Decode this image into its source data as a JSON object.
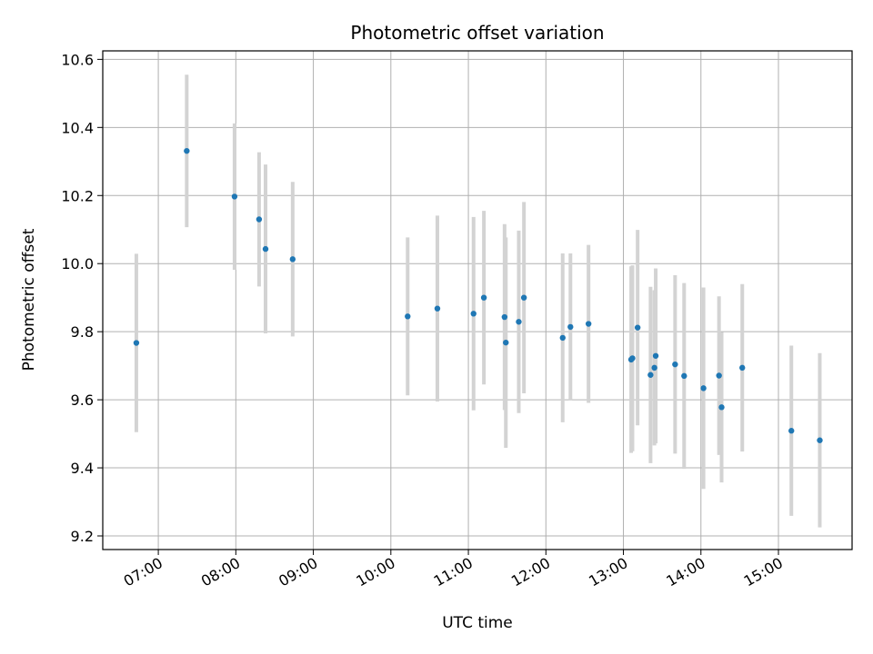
{
  "chart_data": {
    "type": "scatter",
    "title": "Photometric offset variation",
    "xlabel": "UTC time",
    "ylabel": "Photometric offset",
    "x_ticks": [
      "07:00",
      "08:00",
      "09:00",
      "10:00",
      "11:00",
      "12:00",
      "13:00",
      "14:00",
      "15:00"
    ],
    "y_ticks": [
      "9.2",
      "9.4",
      "9.6",
      "9.8",
      "10.0",
      "10.2",
      "10.4",
      "10.6"
    ],
    "xlim": [
      "06:17",
      "15:57"
    ],
    "ylim": [
      9.16,
      10.625
    ],
    "grid": true,
    "colors": {
      "points": "#1f77b4",
      "errorbars": "#d3d3d3",
      "grid": "#b0b0b0"
    },
    "points": [
      {
        "t": "06:43",
        "y": 9.767,
        "err": 0.262
      },
      {
        "t": "07:22",
        "y": 10.331,
        "err": 0.224
      },
      {
        "t": "07:59",
        "y": 10.197,
        "err": 0.215
      },
      {
        "t": "08:18",
        "y": 10.13,
        "err": 0.197
      },
      {
        "t": "08:23",
        "y": 10.043,
        "err": 0.248
      },
      {
        "t": "08:44",
        "y": 10.013,
        "err": 0.227
      },
      {
        "t": "10:13",
        "y": 9.845,
        "err": 0.232
      },
      {
        "t": "10:36",
        "y": 9.868,
        "err": 0.273
      },
      {
        "t": "11:04",
        "y": 9.853,
        "err": 0.284
      },
      {
        "t": "11:12",
        "y": 9.9,
        "err": 0.255
      },
      {
        "t": "11:28",
        "y": 9.843,
        "err": 0.273
      },
      {
        "t": "11:29",
        "y": 9.768,
        "err": 0.309
      },
      {
        "t": "11:39",
        "y": 9.829,
        "err": 0.268
      },
      {
        "t": "11:43",
        "y": 9.9,
        "err": 0.281
      },
      {
        "t": "12:13",
        "y": 9.782,
        "err": 0.248
      },
      {
        "t": "12:19",
        "y": 9.814,
        "err": 0.216
      },
      {
        "t": "12:33",
        "y": 9.823,
        "err": 0.232
      },
      {
        "t": "13:06",
        "y": 9.718,
        "err": 0.274
      },
      {
        "t": "13:07",
        "y": 9.722,
        "err": 0.273
      },
      {
        "t": "13:11",
        "y": 9.812,
        "err": 0.287
      },
      {
        "t": "13:21",
        "y": 9.673,
        "err": 0.259
      },
      {
        "t": "13:24",
        "y": 9.694,
        "err": 0.228
      },
      {
        "t": "13:25",
        "y": 9.729,
        "err": 0.257
      },
      {
        "t": "13:40",
        "y": 9.704,
        "err": 0.262
      },
      {
        "t": "13:47",
        "y": 9.67,
        "err": 0.273
      },
      {
        "t": "14:02",
        "y": 9.634,
        "err": 0.296
      },
      {
        "t": "14:14",
        "y": 9.671,
        "err": 0.233
      },
      {
        "t": "14:16",
        "y": 9.578,
        "err": 0.221
      },
      {
        "t": "14:32",
        "y": 9.694,
        "err": 0.246
      },
      {
        "t": "15:10",
        "y": 9.509,
        "err": 0.25
      },
      {
        "t": "15:32",
        "y": 9.481,
        "err": 0.256
      }
    ]
  }
}
